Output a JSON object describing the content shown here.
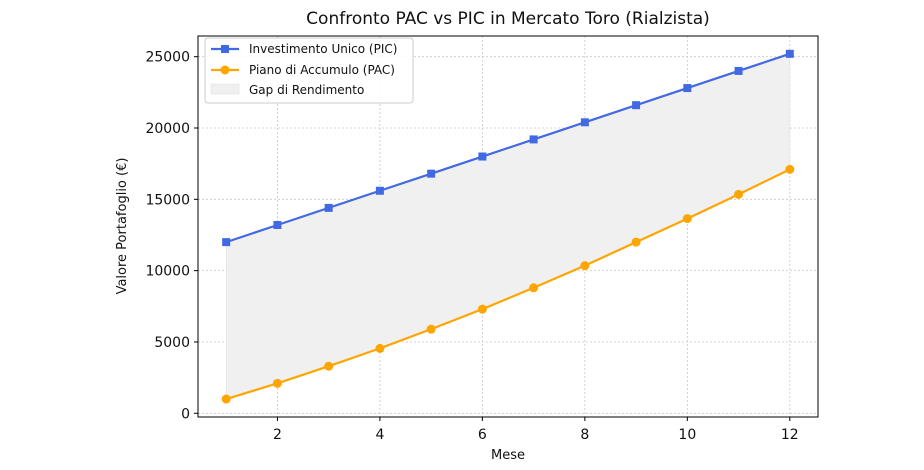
{
  "chart_data": {
    "type": "line",
    "title": "Confronto PAC vs PIC in Mercato Toro (Rialzista)",
    "xlabel": "Mese",
    "ylabel": "Valore Portafoglio (€)",
    "x": [
      1,
      2,
      3,
      4,
      5,
      6,
      7,
      8,
      9,
      10,
      11,
      12
    ],
    "xlim": [
      0.45,
      12.55
    ],
    "ylim": [
      -260,
      26450
    ],
    "xticks": [
      2,
      4,
      6,
      8,
      10,
      12
    ],
    "yticks": [
      0,
      5000,
      10000,
      15000,
      20000,
      25000
    ],
    "grid": true,
    "legend_position": "top-left",
    "series": [
      {
        "name": "Investimento Unico (PIC)",
        "color": "#4169e1",
        "marker": "square",
        "values": [
          12000,
          13200,
          14400,
          15600,
          16800,
          18000,
          19200,
          20400,
          21600,
          22800,
          24000,
          25200
        ]
      },
      {
        "name": "Piano di Accumulo (PAC)",
        "color": "#ffa500",
        "marker": "circle",
        "values": [
          1000,
          2100,
          3300,
          4550,
          5900,
          7300,
          8800,
          10350,
          12000,
          13650,
          15350,
          17100
        ]
      }
    ],
    "fill": {
      "name": "Gap di Rendimento",
      "color": "#f0f0f0"
    }
  }
}
